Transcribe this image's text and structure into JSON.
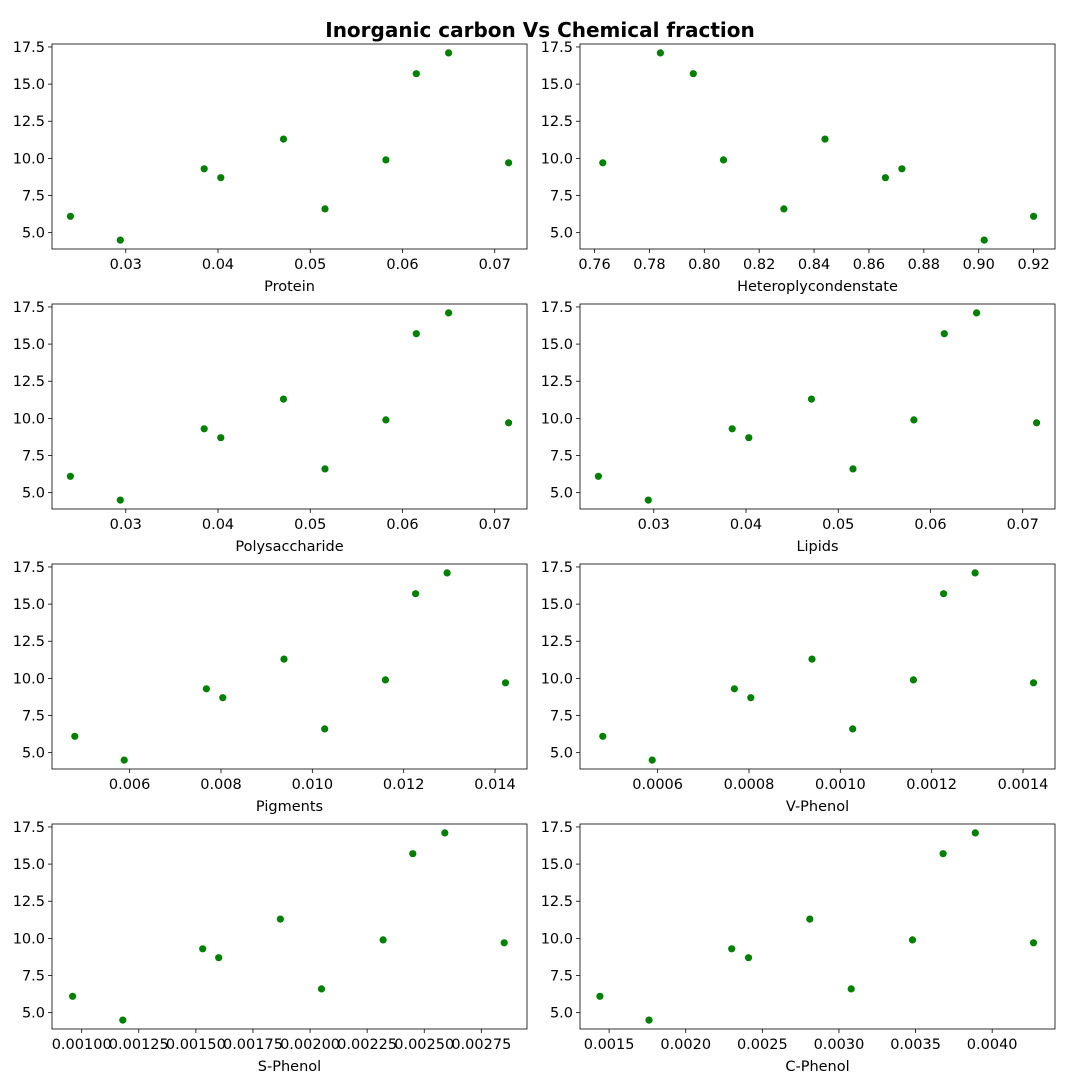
{
  "figure": {
    "title": "Inorganic carbon Vs Chemical fraction",
    "marker_color": "#008000"
  },
  "chart_data": [
    {
      "type": "scatter",
      "xlabel": "Protein",
      "ylabel": "",
      "xlim": [
        0.022,
        0.0735
      ],
      "ylim": [
        3.9,
        17.7
      ],
      "xticks": [
        0.03,
        0.04,
        0.05,
        0.06,
        0.07
      ],
      "xtick_labels": [
        "0.03",
        "0.04",
        "0.05",
        "0.06",
        "0.07"
      ],
      "yticks": [
        5.0,
        7.5,
        10.0,
        12.5,
        15.0,
        17.5
      ],
      "ytick_labels": [
        "5.0",
        "7.5",
        "10.0",
        "12.5",
        "15.0",
        "17.5"
      ],
      "points": [
        [
          0.024,
          6.1
        ],
        [
          0.0294,
          4.5
        ],
        [
          0.0385,
          9.3
        ],
        [
          0.0403,
          8.7
        ],
        [
          0.0471,
          11.3
        ],
        [
          0.0516,
          6.6
        ],
        [
          0.0582,
          9.9
        ],
        [
          0.0615,
          15.7
        ],
        [
          0.065,
          17.1
        ],
        [
          0.0715,
          9.7
        ]
      ]
    },
    {
      "type": "scatter",
      "xlabel": "Heteroplycondenstate",
      "ylabel": "",
      "xlim": [
        0.7547,
        0.9278
      ],
      "ylim": [
        3.9,
        17.7
      ],
      "xticks": [
        0.76,
        0.78,
        0.8,
        0.82,
        0.84,
        0.86,
        0.88,
        0.9,
        0.92
      ],
      "xtick_labels": [
        "0.76",
        "0.78",
        "0.80",
        "0.82",
        "0.84",
        "0.86",
        "0.88",
        "0.90",
        "0.92"
      ],
      "yticks": [
        5.0,
        7.5,
        10.0,
        12.5,
        15.0,
        17.5
      ],
      "ytick_labels": [
        "5.0",
        "7.5",
        "10.0",
        "12.5",
        "15.0",
        "17.5"
      ],
      "points": [
        [
          0.763,
          9.7
        ],
        [
          0.784,
          17.1
        ],
        [
          0.796,
          15.7
        ],
        [
          0.807,
          9.9
        ],
        [
          0.829,
          6.6
        ],
        [
          0.844,
          11.3
        ],
        [
          0.866,
          8.7
        ],
        [
          0.872,
          9.3
        ],
        [
          0.902,
          4.5
        ],
        [
          0.92,
          6.1
        ]
      ]
    },
    {
      "type": "scatter",
      "xlabel": "Polysaccharide",
      "ylabel": "",
      "xlim": [
        0.022,
        0.0735
      ],
      "ylim": [
        3.9,
        17.7
      ],
      "xticks": [
        0.03,
        0.04,
        0.05,
        0.06,
        0.07
      ],
      "xtick_labels": [
        "0.03",
        "0.04",
        "0.05",
        "0.06",
        "0.07"
      ],
      "yticks": [
        5.0,
        7.5,
        10.0,
        12.5,
        15.0,
        17.5
      ],
      "ytick_labels": [
        "5.0",
        "7.5",
        "10.0",
        "12.5",
        "15.0",
        "17.5"
      ],
      "points": [
        [
          0.024,
          6.1
        ],
        [
          0.0294,
          4.5
        ],
        [
          0.0385,
          9.3
        ],
        [
          0.0403,
          8.7
        ],
        [
          0.0471,
          11.3
        ],
        [
          0.0516,
          6.6
        ],
        [
          0.0582,
          9.9
        ],
        [
          0.0615,
          15.7
        ],
        [
          0.065,
          17.1
        ],
        [
          0.0715,
          9.7
        ]
      ]
    },
    {
      "type": "scatter",
      "xlabel": "Lipids",
      "ylabel": "",
      "xlim": [
        0.022,
        0.0735
      ],
      "ylim": [
        3.9,
        17.7
      ],
      "xticks": [
        0.03,
        0.04,
        0.05,
        0.06,
        0.07
      ],
      "xtick_labels": [
        "0.03",
        "0.04",
        "0.05",
        "0.06",
        "0.07"
      ],
      "yticks": [
        5.0,
        7.5,
        10.0,
        12.5,
        15.0,
        17.5
      ],
      "ytick_labels": [
        "5.0",
        "7.5",
        "10.0",
        "12.5",
        "15.0",
        "17.5"
      ],
      "points": [
        [
          0.024,
          6.1
        ],
        [
          0.0294,
          4.5
        ],
        [
          0.0385,
          9.3
        ],
        [
          0.0403,
          8.7
        ],
        [
          0.0471,
          11.3
        ],
        [
          0.0516,
          6.6
        ],
        [
          0.0582,
          9.9
        ],
        [
          0.0615,
          15.7
        ],
        [
          0.065,
          17.1
        ],
        [
          0.0715,
          9.7
        ]
      ]
    },
    {
      "type": "scatter",
      "xlabel": "Pigments",
      "ylabel": "",
      "xlim": [
        0.0043,
        0.0147
      ],
      "ylim": [
        3.9,
        17.7
      ],
      "xticks": [
        0.006,
        0.008,
        0.01,
        0.012,
        0.014
      ],
      "xtick_labels": [
        "0.006",
        "0.008",
        "0.010",
        "0.012",
        "0.014"
      ],
      "yticks": [
        5.0,
        7.5,
        10.0,
        12.5,
        15.0,
        17.5
      ],
      "ytick_labels": [
        "5.0",
        "7.5",
        "10.0",
        "12.5",
        "15.0",
        "17.5"
      ],
      "points": [
        [
          0.0048,
          6.1
        ],
        [
          0.00588,
          4.5
        ],
        [
          0.00768,
          9.3
        ],
        [
          0.00804,
          8.7
        ],
        [
          0.00938,
          11.3
        ],
        [
          0.01027,
          6.6
        ],
        [
          0.0116,
          9.9
        ],
        [
          0.01226,
          15.7
        ],
        [
          0.01295,
          17.1
        ],
        [
          0.01423,
          9.7
        ]
      ]
    },
    {
      "type": "scatter",
      "xlabel": "V-Phenol",
      "ylabel": "",
      "xlim": [
        0.00043,
        0.00147
      ],
      "ylim": [
        3.9,
        17.7
      ],
      "xticks": [
        0.0006,
        0.0008,
        0.001,
        0.0012,
        0.0014
      ],
      "xtick_labels": [
        "0.0006",
        "0.0008",
        "0.0010",
        "0.0012",
        "0.0014"
      ],
      "yticks": [
        5.0,
        7.5,
        10.0,
        12.5,
        15.0,
        17.5
      ],
      "ytick_labels": [
        "5.0",
        "7.5",
        "10.0",
        "12.5",
        "15.0",
        "17.5"
      ],
      "points": [
        [
          0.00048,
          6.1
        ],
        [
          0.000588,
          4.5
        ],
        [
          0.000768,
          9.3
        ],
        [
          0.000804,
          8.7
        ],
        [
          0.000938,
          11.3
        ],
        [
          0.001027,
          6.6
        ],
        [
          0.00116,
          9.9
        ],
        [
          0.001226,
          15.7
        ],
        [
          0.001295,
          17.1
        ],
        [
          0.001423,
          9.7
        ]
      ]
    },
    {
      "type": "scatter",
      "xlabel": "S-Phenol",
      "ylabel": "",
      "xlim": [
        0.00087,
        0.00295
      ],
      "ylim": [
        3.9,
        17.7
      ],
      "xticks": [
        0.001,
        0.00125,
        0.0015,
        0.00175,
        0.002,
        0.00225,
        0.0025,
        0.00275
      ],
      "xtick_labels": [
        "0.00100",
        "0.00125",
        "0.00150",
        "0.00175",
        "0.00200",
        "0.00225",
        "0.00250",
        "0.00275"
      ],
      "yticks": [
        5.0,
        7.5,
        10.0,
        12.5,
        15.0,
        17.5
      ],
      "ytick_labels": [
        "5.0",
        "7.5",
        "10.0",
        "12.5",
        "15.0",
        "17.5"
      ],
      "points": [
        [
          0.00096,
          6.1
        ],
        [
          0.00118,
          4.5
        ],
        [
          0.00153,
          9.3
        ],
        [
          0.0016,
          8.7
        ],
        [
          0.00187,
          11.3
        ],
        [
          0.00205,
          6.6
        ],
        [
          0.00232,
          9.9
        ],
        [
          0.00245,
          15.7
        ],
        [
          0.00259,
          17.1
        ],
        [
          0.00285,
          9.7
        ]
      ]
    },
    {
      "type": "scatter",
      "xlabel": "C-Phenol",
      "ylabel": "",
      "xlim": [
        0.00131,
        0.00441
      ],
      "ylim": [
        3.9,
        17.7
      ],
      "xticks": [
        0.0015,
        0.002,
        0.0025,
        0.003,
        0.0035,
        0.004
      ],
      "xtick_labels": [
        "0.0015",
        "0.0020",
        "0.0025",
        "0.0030",
        "0.0035",
        "0.0040"
      ],
      "yticks": [
        5.0,
        7.5,
        10.0,
        12.5,
        15.0,
        17.5
      ],
      "ytick_labels": [
        "5.0",
        "7.5",
        "10.0",
        "12.5",
        "15.0",
        "17.5"
      ],
      "points": [
        [
          0.00144,
          6.1
        ],
        [
          0.00176,
          4.5
        ],
        [
          0.0023,
          9.3
        ],
        [
          0.00241,
          8.7
        ],
        [
          0.00281,
          11.3
        ],
        [
          0.00308,
          6.6
        ],
        [
          0.00348,
          9.9
        ],
        [
          0.00368,
          15.7
        ],
        [
          0.00389,
          17.1
        ],
        [
          0.00427,
          9.7
        ]
      ]
    }
  ]
}
